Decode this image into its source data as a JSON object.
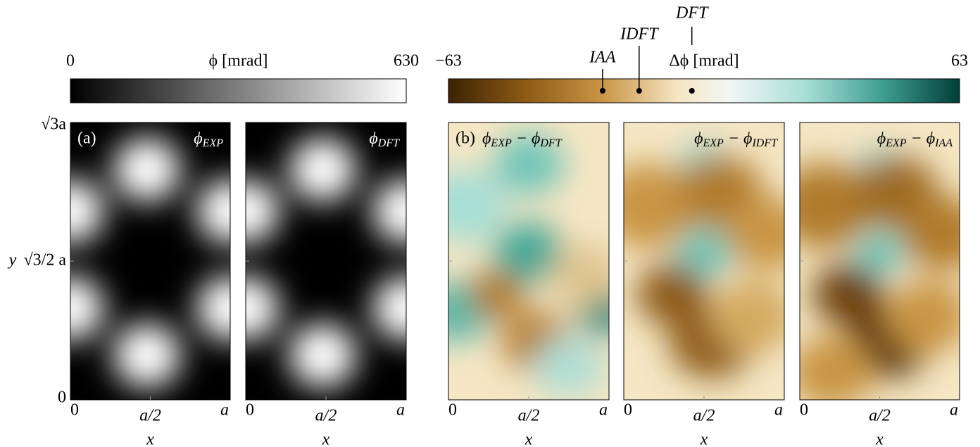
{
  "colorbars": [
    {
      "label": "ϕ [mrad]",
      "lim": [
        0,
        630
      ],
      "ticks": [
        0,
        630
      ]
    },
    {
      "label": "Δϕ [mrad]",
      "lim": [
        -63,
        63
      ],
      "ticks": [
        {
          "value": -63,
          "label": "−63"
        },
        63
      ],
      "markers": [
        {
          "label": "IAA",
          "value": -25
        },
        {
          "label": "IDFT",
          "value": -16
        },
        {
          "label": "DFT",
          "value": -3
        }
      ]
    }
  ],
  "panels": [
    {
      "tag": "(a)",
      "title": [
        {
          "text": "ϕ",
          "sub": "EXP"
        }
      ]
    },
    {
      "title": [
        {
          "text": "ϕ",
          "sub": "DFT"
        }
      ]
    },
    {
      "tag": "(b)",
      "title": [
        {
          "text": "ϕ",
          "sub": "EXP"
        },
        {
          "text": " − ϕ",
          "sub": "DFT"
        }
      ]
    },
    {
      "title": [
        {
          "text": "ϕ",
          "sub": "EXP"
        },
        {
          "text": " − ϕ",
          "sub": "IDFT"
        }
      ]
    },
    {
      "title": [
        {
          "text": "ϕ",
          "sub": "EXP"
        },
        {
          "text": " − ϕ",
          "sub": "IAA"
        }
      ]
    }
  ],
  "x_axis": {
    "label": "x",
    "ticks": [
      "0",
      "a/2",
      "a"
    ]
  },
  "y_axis": {
    "label": "y",
    "ticks": [
      "0",
      "√3/2 a",
      "√3a"
    ]
  }
}
